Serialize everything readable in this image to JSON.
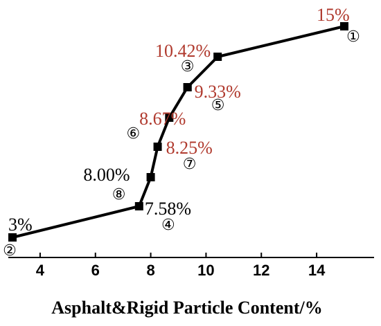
{
  "chart_data": {
    "type": "line",
    "xlabel": "Asphalt&Rigid Particle Content/%",
    "ylabel": "",
    "title": "",
    "xlim": [
      3,
      15
    ],
    "x_ticks": [
      "4",
      "6",
      "8",
      "10",
      "12",
      "14"
    ],
    "y_axis_visible": false,
    "grid": false,
    "colors": {
      "line": "#000000",
      "highlight_label": "#b03a2e",
      "normal_label": "#000000"
    },
    "series": [
      {
        "points": [
          {
            "x": 3.0,
            "label": "3%",
            "marker": "②",
            "highlight": false
          },
          {
            "x": 7.58,
            "label": "7.58%",
            "marker": "④",
            "highlight": false
          },
          {
            "x": 8.0,
            "label": "8.00%",
            "marker": "⑧",
            "highlight": false
          },
          {
            "x": 8.25,
            "label": "8.25%",
            "marker": "⑦",
            "highlight": true
          },
          {
            "x": 8.67,
            "label": "8.67%",
            "marker": "⑥",
            "highlight": true
          },
          {
            "x": 9.33,
            "label": "9.33%",
            "marker": "⑤",
            "highlight": true
          },
          {
            "x": 9.33,
            "label": "",
            "marker": "③",
            "highlight": true
          },
          {
            "x": 10.42,
            "label": "10.42%",
            "marker": "",
            "highlight": true
          },
          {
            "x": 15.0,
            "label": "15%",
            "marker": "①",
            "highlight": true
          }
        ]
      }
    ]
  }
}
